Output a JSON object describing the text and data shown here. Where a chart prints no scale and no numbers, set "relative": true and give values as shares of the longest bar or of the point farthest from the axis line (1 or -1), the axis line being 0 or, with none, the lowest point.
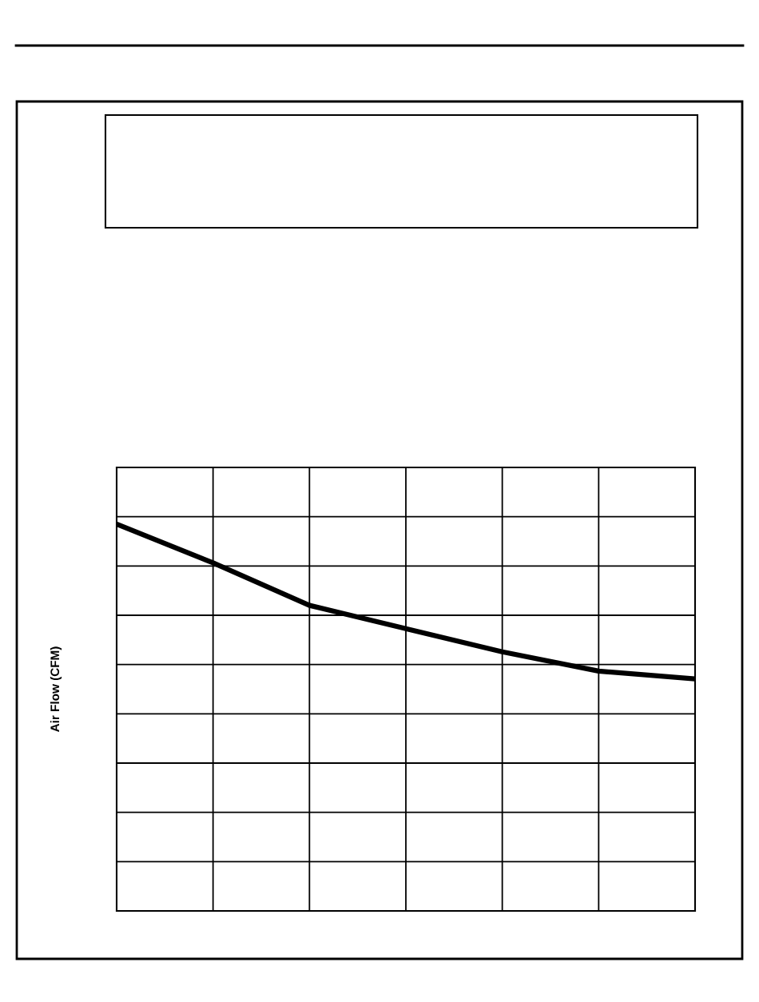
{
  "chart_data": {
    "type": "line",
    "ylabel": "Air Flow (CFM)",
    "relative": true,
    "grid": true,
    "marker": "none",
    "line_style": "solid",
    "categories": [
      null,
      null,
      null,
      null,
      null,
      null,
      null
    ],
    "series": [
      {
        "color": "#000000",
        "values": [
          1,
          0.9,
          0.79,
          0.73,
          0.67,
          0.62,
          0.6
        ]
      }
    ]
  }
}
